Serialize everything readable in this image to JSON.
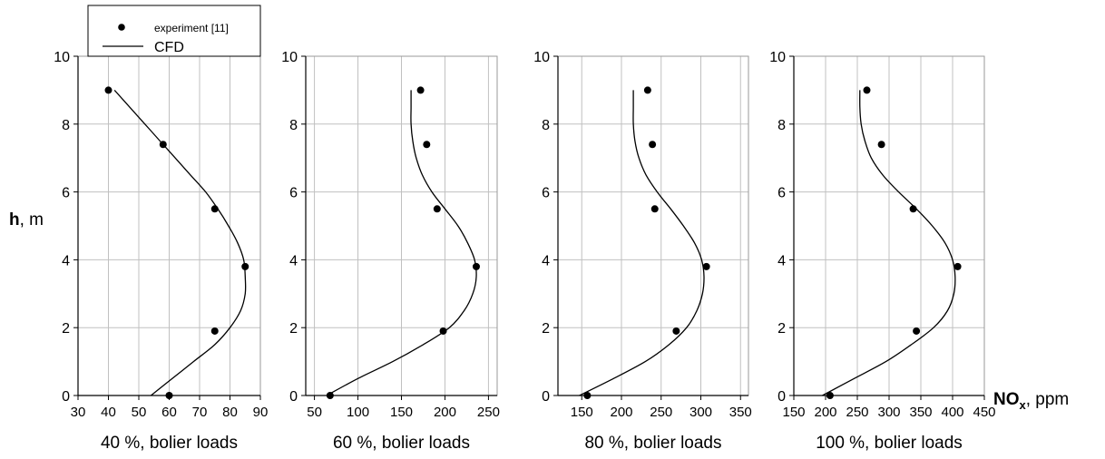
{
  "ylabel": {
    "bold": "h",
    "rest": ", m"
  },
  "xlabel": {
    "bold": "NO",
    "sub": "x",
    "rest": ", ppm"
  },
  "legend": {
    "experiment": "experiment [11]",
    "cfd": "CFD"
  },
  "chart_data": [
    {
      "type": "scatter",
      "caption": "40 %, bolier loads",
      "xlim": [
        30,
        90
      ],
      "xticks": [
        30,
        40,
        50,
        60,
        70,
        80,
        90
      ],
      "ylim": [
        0,
        10
      ],
      "yticks": [
        0,
        2,
        4,
        6,
        8,
        10
      ],
      "grid": true,
      "series": [
        {
          "name": "experiment [11]",
          "kind": "points",
          "x": [
            40,
            58,
            75,
            85,
            75,
            60
          ],
          "y": [
            9.0,
            7.4,
            5.5,
            3.8,
            1.9,
            0.0
          ]
        },
        {
          "name": "CFD",
          "kind": "line",
          "x": [
            54,
            61,
            68,
            75,
            80,
            83.5,
            85,
            85,
            84.5,
            82.5,
            79.5,
            76,
            72,
            67,
            62,
            57,
            52,
            47,
            42
          ],
          "y": [
            0.0,
            0.5,
            1.0,
            1.5,
            2.0,
            2.5,
            3.0,
            3.5,
            4.0,
            4.5,
            5.0,
            5.5,
            6.0,
            6.5,
            7.0,
            7.5,
            8.0,
            8.5,
            9.0
          ]
        }
      ]
    },
    {
      "type": "scatter",
      "caption": "60 %, bolier loads",
      "xlim": [
        40,
        260
      ],
      "xticks": [
        50,
        100,
        150,
        200,
        250
      ],
      "ylim": [
        0,
        10
      ],
      "yticks": [
        0,
        2,
        4,
        6,
        8,
        10
      ],
      "grid": true,
      "series": [
        {
          "name": "experiment [11]",
          "kind": "points",
          "x": [
            172,
            179,
            191,
            236,
            198,
            68
          ],
          "y": [
            9.0,
            7.4,
            5.5,
            3.8,
            1.9,
            0.0
          ]
        },
        {
          "name": "CFD",
          "kind": "line",
          "x": [
            64,
            100,
            140,
            175,
            205,
            222,
            232,
            236,
            234,
            226,
            215,
            200,
            185,
            174,
            167,
            163,
            161,
            161,
            161
          ],
          "y": [
            0.0,
            0.5,
            1.0,
            1.5,
            2.0,
            2.5,
            3.0,
            3.5,
            4.0,
            4.5,
            5.0,
            5.5,
            6.0,
            6.5,
            7.0,
            7.5,
            8.0,
            8.5,
            9.0
          ]
        }
      ]
    },
    {
      "type": "scatter",
      "caption": "80 %, bolier loads",
      "xlim": [
        120,
        360
      ],
      "xticks": [
        150,
        200,
        250,
        300,
        350
      ],
      "ylim": [
        0,
        10
      ],
      "yticks": [
        0,
        2,
        4,
        6,
        8,
        10
      ],
      "grid": true,
      "series": [
        {
          "name": "experiment [11]",
          "kind": "points",
          "x": [
            233,
            239,
            242,
            307,
            269,
            157
          ],
          "y": [
            9.0,
            7.4,
            5.5,
            3.8,
            1.9,
            0.0
          ]
        },
        {
          "name": "CFD",
          "kind": "line",
          "x": [
            147,
            190,
            230,
            260,
            282,
            295,
            302,
            304,
            301,
            292,
            278,
            262,
            245,
            231,
            222,
            217,
            215,
            215,
            215
          ],
          "y": [
            0.0,
            0.5,
            1.0,
            1.5,
            2.0,
            2.5,
            3.0,
            3.5,
            4.0,
            4.5,
            5.0,
            5.5,
            6.0,
            6.5,
            7.0,
            7.5,
            8.0,
            8.5,
            9.0
          ]
        }
      ]
    },
    {
      "type": "scatter",
      "caption": "100 %, bolier loads",
      "xlim": [
        150,
        450
      ],
      "xticks": [
        150,
        200,
        250,
        300,
        350,
        400,
        450
      ],
      "ylim": [
        0,
        10
      ],
      "yticks": [
        0,
        2,
        4,
        6,
        8,
        10
      ],
      "grid": true,
      "series": [
        {
          "name": "experiment [11]",
          "kind": "points",
          "x": [
            265,
            288,
            338,
            408,
            343,
            207
          ],
          "y": [
            9.0,
            7.4,
            5.5,
            3.8,
            1.9,
            0.0
          ]
        },
        {
          "name": "CFD",
          "kind": "line",
          "x": [
            195,
            245,
            295,
            335,
            370,
            392,
            402,
            404,
            400,
            388,
            368,
            343,
            315,
            290,
            272,
            262,
            256,
            254,
            254
          ],
          "y": [
            0.0,
            0.5,
            1.0,
            1.5,
            2.0,
            2.5,
            3.0,
            3.5,
            4.0,
            4.5,
            5.0,
            5.5,
            6.0,
            6.5,
            7.0,
            7.5,
            8.0,
            8.5,
            9.0
          ]
        }
      ]
    }
  ]
}
